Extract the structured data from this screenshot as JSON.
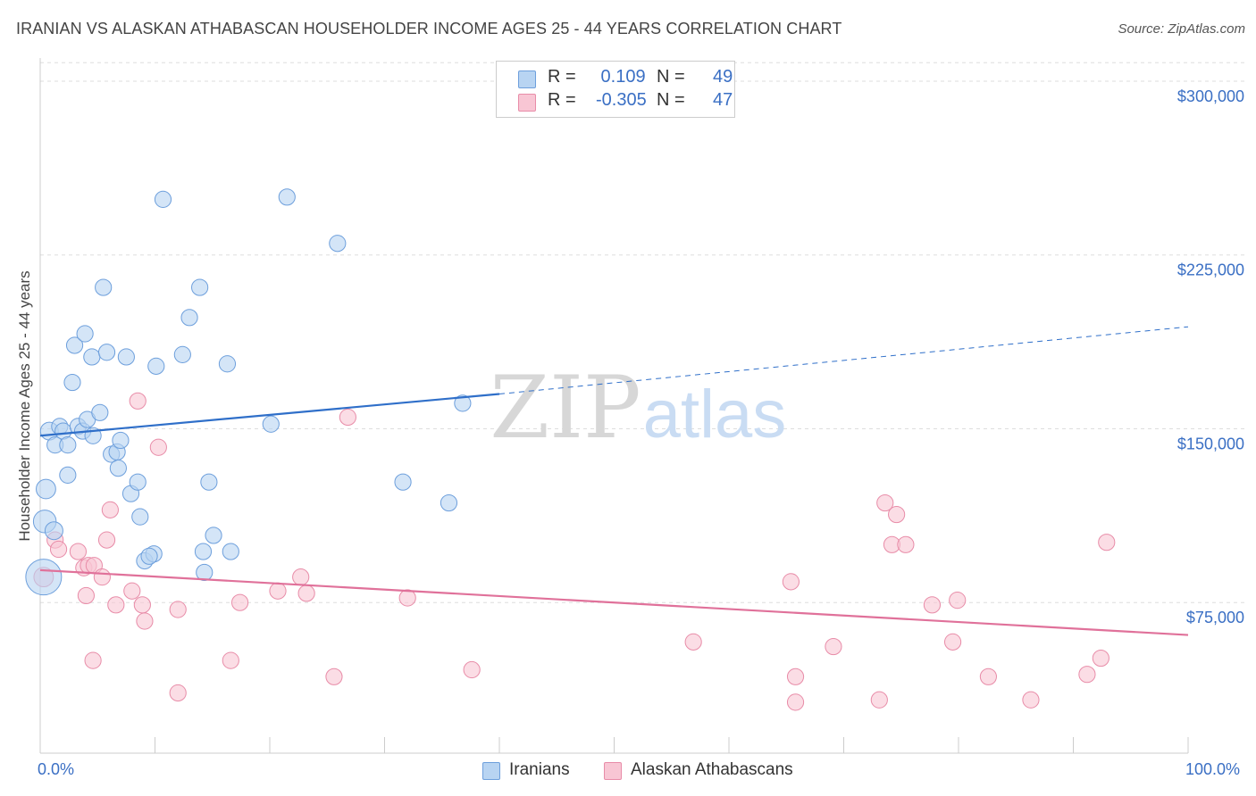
{
  "title": "IRANIAN VS ALASKAN ATHABASCAN HOUSEHOLDER INCOME AGES 25 - 44 YEARS CORRELATION CHART",
  "source": "Source: ZipAtlas.com",
  "watermark": {
    "zip": "ZIP",
    "atlas": "atlas"
  },
  "colors": {
    "blue_fill": "#b8d4f2",
    "blue_stroke": "#6d9fdc",
    "blue_line": "#2f6fc9",
    "pink_fill": "#f8c6d4",
    "pink_stroke": "#e88ca8",
    "pink_line": "#e0719a",
    "axis_label": "#3a6fc4",
    "grid": "#dddddd"
  },
  "legend": {
    "rows": [
      {
        "label": "R =",
        "r": " 0.109",
        "n_label": "N =",
        "n": "49",
        "series": "Iranians"
      },
      {
        "label": "R =",
        "r": "-0.305",
        "n_label": "N =",
        "n": "47",
        "series": "Alaskan Athabascans"
      }
    ]
  },
  "bottom_legend": [
    "Iranians",
    "Alaskan Athabascans"
  ],
  "chart_data": {
    "type": "scatter",
    "title": "IRANIAN VS ALASKAN ATHABASCAN HOUSEHOLDER INCOME AGES 25 - 44 YEARS CORRELATION CHART",
    "xlabel": "",
    "ylabel": "Householder Income Ages 25 - 44 years",
    "xlim": [
      0,
      100
    ],
    "ylim": [
      10000,
      310000
    ],
    "x_tick_labels": [
      "0.0%",
      "100.0%"
    ],
    "y_ticks": [
      75000,
      150000,
      225000,
      300000
    ],
    "y_tick_labels": [
      "$75,000",
      "$150,000",
      "$225,000",
      "$300,000"
    ],
    "grid": true,
    "legend_position": "top-center",
    "series": [
      {
        "name": "Iranians",
        "r": 0.109,
        "n": 49,
        "trend": {
          "x0": 0,
          "y0": 147000,
          "x1": 40,
          "y1": 165000,
          "x_dash_end": 100,
          "y_dash_end": 194000
        },
        "points": [
          [
            0.3,
            86000,
            22
          ],
          [
            0.4,
            110000,
            14
          ],
          [
            0.5,
            124000,
            12
          ],
          [
            0.8,
            149000,
            11
          ],
          [
            1.2,
            106000,
            11
          ],
          [
            1.3,
            143000,
            10
          ],
          [
            1.7,
            151000,
            10
          ],
          [
            2.0,
            149000,
            10
          ],
          [
            2.4,
            130000,
            10
          ],
          [
            2.4,
            143000,
            10
          ],
          [
            2.8,
            170000,
            10
          ],
          [
            3.0,
            186000,
            10
          ],
          [
            3.3,
            151000,
            10
          ],
          [
            3.7,
            149000,
            10
          ],
          [
            3.9,
            191000,
            10
          ],
          [
            4.1,
            154000,
            10
          ],
          [
            4.5,
            181000,
            10
          ],
          [
            4.6,
            147000,
            10
          ],
          [
            5.2,
            157000,
            10
          ],
          [
            5.5,
            211000,
            10
          ],
          [
            5.8,
            183000,
            10
          ],
          [
            6.2,
            139000,
            10
          ],
          [
            6.7,
            140000,
            10
          ],
          [
            6.8,
            133000,
            10
          ],
          [
            7.0,
            145000,
            10
          ],
          [
            7.5,
            181000,
            10
          ],
          [
            7.9,
            122000,
            10
          ],
          [
            8.5,
            127000,
            10
          ],
          [
            8.7,
            112000,
            10
          ],
          [
            9.1,
            93000,
            10
          ],
          [
            9.9,
            96000,
            10
          ],
          [
            10.1,
            177000,
            10
          ],
          [
            10.7,
            249000,
            10
          ],
          [
            12.4,
            182000,
            10
          ],
          [
            13.0,
            198000,
            10
          ],
          [
            13.9,
            211000,
            10
          ],
          [
            14.2,
            97000,
            10
          ],
          [
            14.3,
            88000,
            10
          ],
          [
            14.7,
            127000,
            10
          ],
          [
            15.1,
            104000,
            10
          ],
          [
            16.3,
            178000,
            10
          ],
          [
            16.6,
            97000,
            10
          ],
          [
            20.1,
            152000,
            10
          ],
          [
            21.5,
            250000,
            10
          ],
          [
            25.9,
            230000,
            10
          ],
          [
            31.6,
            127000,
            10
          ],
          [
            35.6,
            118000,
            10
          ],
          [
            36.8,
            161000,
            10
          ],
          [
            9.5,
            95000,
            10
          ]
        ]
      },
      {
        "name": "Alaskan Athabascans",
        "r": -0.305,
        "n": 47,
        "trend": {
          "x0": 0,
          "y0": 89000,
          "x1": 100,
          "y1": 61000
        },
        "points": [
          [
            0.3,
            86000,
            12
          ],
          [
            1.3,
            102000,
            10
          ],
          [
            1.6,
            98000,
            10
          ],
          [
            3.3,
            97000,
            10
          ],
          [
            3.8,
            90000,
            10
          ],
          [
            4.0,
            78000,
            10
          ],
          [
            4.2,
            91000,
            10
          ],
          [
            4.6,
            50000,
            10
          ],
          [
            4.7,
            91000,
            10
          ],
          [
            5.4,
            86000,
            10
          ],
          [
            5.8,
            102000,
            10
          ],
          [
            6.1,
            115000,
            10
          ],
          [
            6.6,
            74000,
            10
          ],
          [
            8.0,
            80000,
            10
          ],
          [
            8.5,
            162000,
            10
          ],
          [
            8.9,
            74000,
            10
          ],
          [
            9.1,
            67000,
            10
          ],
          [
            10.3,
            142000,
            10
          ],
          [
            12.0,
            72000,
            10
          ],
          [
            12.0,
            36000,
            10
          ],
          [
            16.6,
            50000,
            10
          ],
          [
            17.4,
            75000,
            10
          ],
          [
            20.7,
            80000,
            10
          ],
          [
            22.7,
            86000,
            10
          ],
          [
            23.2,
            79000,
            10
          ],
          [
            25.6,
            43000,
            10
          ],
          [
            26.8,
            155000,
            10
          ],
          [
            32.0,
            77000,
            10
          ],
          [
            37.6,
            46000,
            10
          ],
          [
            56.9,
            58000,
            10
          ],
          [
            65.4,
            84000,
            10
          ],
          [
            65.8,
            43000,
            10
          ],
          [
            65.8,
            32000,
            10
          ],
          [
            69.1,
            56000,
            10
          ],
          [
            73.1,
            33000,
            10
          ],
          [
            73.6,
            118000,
            10
          ],
          [
            74.2,
            100000,
            10
          ],
          [
            74.6,
            113000,
            10
          ],
          [
            75.4,
            100000,
            10
          ],
          [
            77.7,
            74000,
            10
          ],
          [
            79.5,
            58000,
            10
          ],
          [
            79.9,
            76000,
            10
          ],
          [
            82.6,
            43000,
            10
          ],
          [
            86.3,
            33000,
            10
          ],
          [
            91.2,
            44000,
            10
          ],
          [
            92.4,
            51000,
            10
          ],
          [
            92.9,
            101000,
            10
          ]
        ]
      }
    ]
  }
}
